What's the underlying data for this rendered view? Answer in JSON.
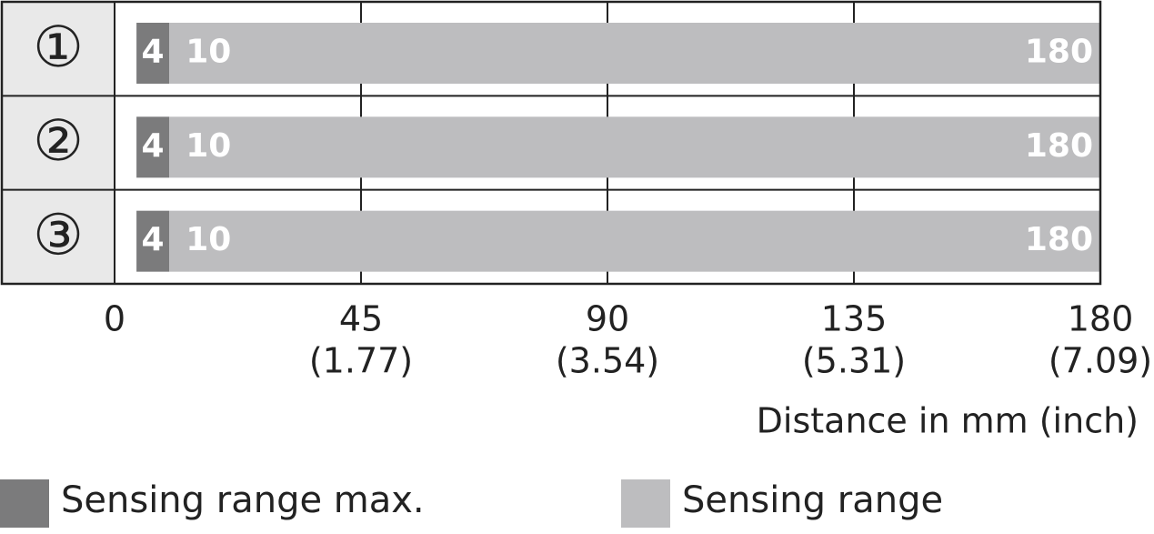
{
  "chart_data": {
    "type": "range-bar",
    "categories": [
      "①",
      "②",
      "③"
    ],
    "series": [
      {
        "name": "Sensing range max.",
        "color": "#7b7b7c",
        "values": [
          [
            4,
            10
          ],
          [
            4,
            10
          ],
          [
            4,
            10
          ]
        ]
      },
      {
        "name": "Sensing range",
        "color": "#bdbdbf",
        "values": [
          [
            10,
            180
          ],
          [
            10,
            180
          ],
          [
            10,
            180
          ]
        ]
      }
    ],
    "xlim": [
      0,
      180
    ],
    "xticks": [
      0,
      45,
      90,
      135,
      180
    ],
    "xtick_inch_labels": [
      null,
      "(1.77)",
      "(3.54)",
      "(5.31)",
      "(7.09)"
    ],
    "xlabel": "Distance in mm (inch)",
    "grid": true
  }
}
